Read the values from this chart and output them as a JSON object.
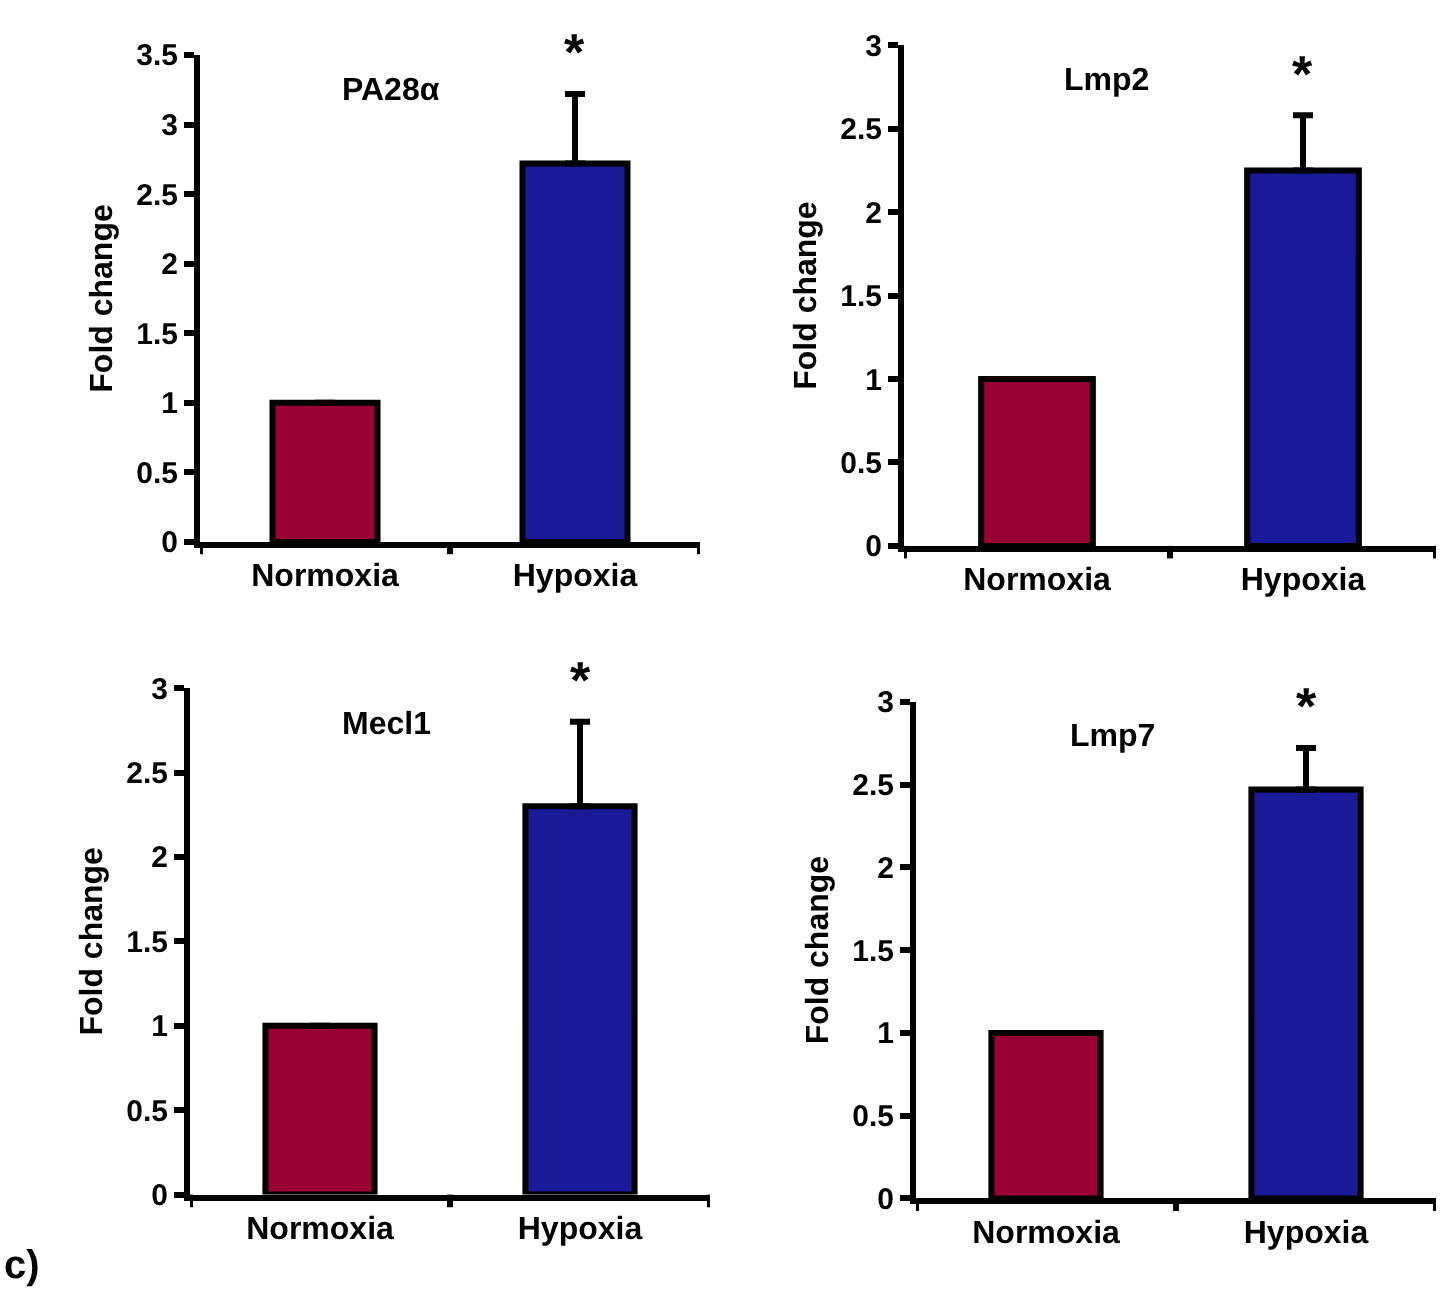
{
  "chart_data": [
    {
      "type": "bar",
      "title": "PA28α",
      "ylabel": "Fold change",
      "categories": [
        "Normoxia",
        "Hypoxia"
      ],
      "values": [
        1,
        2.72
      ],
      "colors": [
        "#990033",
        "#1a1a99"
      ],
      "errors": [
        null,
        [
          2.72,
          3.22
        ]
      ],
      "ylim": [
        0,
        3.5
      ],
      "yticks": [
        0,
        0.5,
        1,
        1.5,
        2,
        2.5,
        3,
        3.5
      ],
      "annotations": [
        "*"
      ]
    },
    {
      "type": "bar",
      "title": "Lmp2",
      "ylabel": "Fold change",
      "categories": [
        "Normoxia",
        "Hypoxia"
      ],
      "values": [
        1,
        2.25
      ],
      "colors": [
        "#990033",
        "#1a1a99"
      ],
      "errors": [
        null,
        [
          2.25,
          2.58
        ]
      ],
      "ylim": [
        0,
        3
      ],
      "yticks": [
        0,
        0.5,
        1,
        1.5,
        2,
        2.5,
        3
      ],
      "annotations": [
        "*"
      ]
    },
    {
      "type": "bar",
      "title": "Mecl1",
      "ylabel": "Fold change",
      "categories": [
        "Normoxia",
        "Hypoxia"
      ],
      "values": [
        1,
        2.3
      ],
      "colors": [
        "#990033",
        "#1a1a99"
      ],
      "errors": [
        null,
        [
          2.3,
          2.8
        ]
      ],
      "ylim": [
        0,
        3
      ],
      "yticks": [
        0,
        0.5,
        1,
        1.5,
        2,
        2.5,
        3
      ],
      "annotations": [
        "*",
        "c)"
      ]
    },
    {
      "type": "bar",
      "title": "Lmp7",
      "ylabel": "Fold change",
      "categories": [
        "Normoxia",
        "Hypoxia"
      ],
      "values": [
        1,
        2.47
      ],
      "colors": [
        "#990033",
        "#1a1a99"
      ],
      "errors": [
        null,
        [
          2.47,
          2.72
        ]
      ],
      "ylim": [
        0,
        3
      ],
      "yticks": [
        0,
        0.5,
        1,
        1.5,
        2,
        2.5,
        3
      ],
      "annotations": [
        "*"
      ]
    }
  ]
}
